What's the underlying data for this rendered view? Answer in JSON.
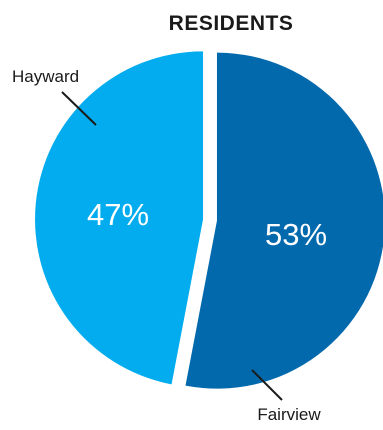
{
  "chart_data": {
    "type": "pie",
    "title": "RESIDENTS",
    "slices": [
      {
        "label": "Fairview",
        "value": 53,
        "value_label": "53%",
        "color": "#0369ad"
      },
      {
        "label": "Hayward",
        "value": 47,
        "value_label": "47%",
        "color": "#02acef"
      }
    ],
    "legend": "none",
    "label_style": "callout-lines"
  }
}
